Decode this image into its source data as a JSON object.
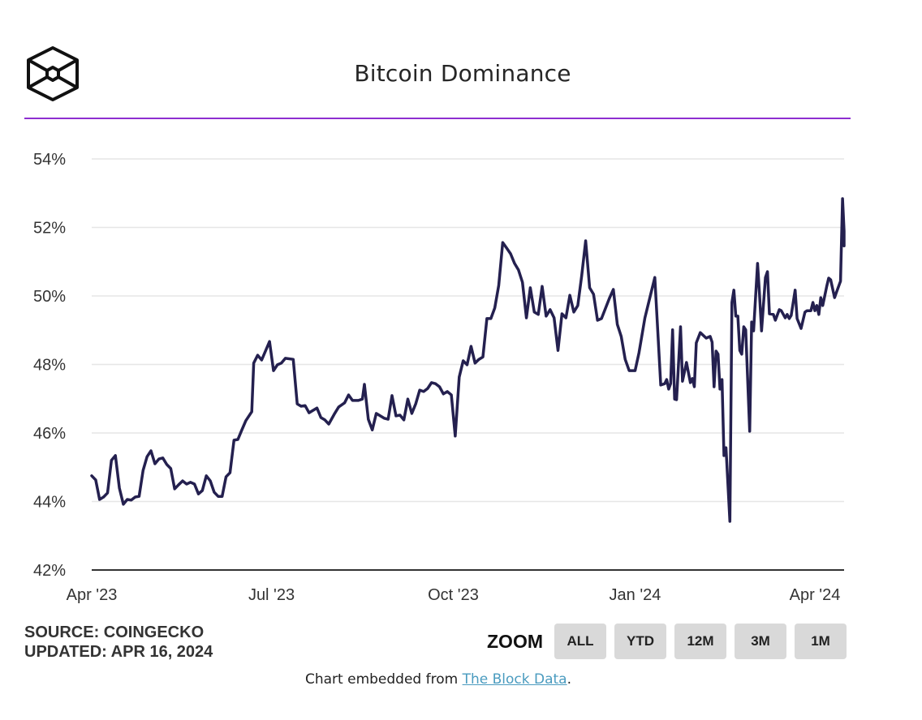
{
  "header": {
    "title": "Bitcoin Dominance",
    "logo_icon": "the-block-cube-logo-icon",
    "accent_color": "#8e2fd0"
  },
  "meta": {
    "source": "SOURCE: COINGECKO",
    "updated": "UPDATED: APR 16, 2024"
  },
  "zoom": {
    "label": "ZOOM",
    "buttons": [
      "ALL",
      "YTD",
      "12M",
      "3M",
      "1M"
    ]
  },
  "footer": {
    "prefix": "Chart embedded from ",
    "link_text": "The Block Data",
    "suffix": ".",
    "link_color": "#4a9bbf"
  },
  "chart_data": {
    "type": "line",
    "title": "Bitcoin Dominance",
    "xlabel": "",
    "ylabel": "",
    "ylim": [
      42,
      54
    ],
    "xlim": [
      "2023-04-01",
      "2024-04-15"
    ],
    "yticks": [
      42,
      44,
      46,
      48,
      50,
      52,
      54
    ],
    "ytick_labels": [
      "42%",
      "44%",
      "46%",
      "48%",
      "50%",
      "52%",
      "54%"
    ],
    "xticks": [
      "2023-04-01",
      "2023-07-01",
      "2023-10-01",
      "2024-01-01",
      "2024-04-01"
    ],
    "xtick_labels": [
      "Apr '23",
      "Jul '23",
      "Oct '23",
      "Jan '24",
      "Apr '24"
    ],
    "grid": "horizontal",
    "legend": "none",
    "line_color": "#24204f",
    "series": [
      {
        "name": "Bitcoin Dominance",
        "points": [
          [
            "2023-04-01",
            44.75
          ],
          [
            "2023-04-03",
            44.63
          ],
          [
            "2023-04-05",
            44.06
          ],
          [
            "2023-04-07",
            44.13
          ],
          [
            "2023-04-09",
            44.25
          ],
          [
            "2023-04-11",
            45.2
          ],
          [
            "2023-04-13",
            45.34
          ],
          [
            "2023-04-15",
            44.39
          ],
          [
            "2023-04-17",
            43.92
          ],
          [
            "2023-04-19",
            44.06
          ],
          [
            "2023-04-21",
            44.04
          ],
          [
            "2023-04-23",
            44.13
          ],
          [
            "2023-04-25",
            44.15
          ],
          [
            "2023-04-27",
            44.91
          ],
          [
            "2023-04-29",
            45.31
          ],
          [
            "2023-05-01",
            45.48
          ],
          [
            "2023-05-03",
            45.1
          ],
          [
            "2023-05-05",
            45.24
          ],
          [
            "2023-05-07",
            45.27
          ],
          [
            "2023-05-09",
            45.08
          ],
          [
            "2023-05-11",
            44.96
          ],
          [
            "2023-05-13",
            44.37
          ],
          [
            "2023-05-15",
            44.49
          ],
          [
            "2023-05-17",
            44.6
          ],
          [
            "2023-05-19",
            44.51
          ],
          [
            "2023-05-21",
            44.56
          ],
          [
            "2023-05-23",
            44.51
          ],
          [
            "2023-05-25",
            44.22
          ],
          [
            "2023-05-27",
            44.32
          ],
          [
            "2023-05-29",
            44.75
          ],
          [
            "2023-05-31",
            44.6
          ],
          [
            "2023-06-02",
            44.27
          ],
          [
            "2023-06-04",
            44.15
          ],
          [
            "2023-06-06",
            44.15
          ],
          [
            "2023-06-08",
            44.72
          ],
          [
            "2023-06-10",
            44.84
          ],
          [
            "2023-06-12",
            45.79
          ],
          [
            "2023-06-14",
            45.81
          ],
          [
            "2023-06-16",
            46.09
          ],
          [
            "2023-06-18",
            46.36
          ],
          [
            "2023-06-21",
            46.62
          ],
          [
            "2023-06-22",
            48.04
          ],
          [
            "2023-06-24",
            48.27
          ],
          [
            "2023-06-26",
            48.13
          ],
          [
            "2023-06-30",
            48.67
          ],
          [
            "2023-07-02",
            47.82
          ],
          [
            "2023-07-04",
            47.99
          ],
          [
            "2023-07-06",
            48.04
          ],
          [
            "2023-07-08",
            48.18
          ],
          [
            "2023-07-12",
            48.15
          ],
          [
            "2023-07-14",
            46.85
          ],
          [
            "2023-07-16",
            46.78
          ],
          [
            "2023-07-18",
            46.8
          ],
          [
            "2023-07-20",
            46.59
          ],
          [
            "2023-07-24",
            46.73
          ],
          [
            "2023-07-26",
            46.45
          ],
          [
            "2023-07-28",
            46.38
          ],
          [
            "2023-07-30",
            46.26
          ],
          [
            "2023-08-02",
            46.57
          ],
          [
            "2023-08-04",
            46.76
          ],
          [
            "2023-08-07",
            46.88
          ],
          [
            "2023-08-09",
            47.11
          ],
          [
            "2023-08-11",
            46.95
          ],
          [
            "2023-08-14",
            46.95
          ],
          [
            "2023-08-16",
            46.99
          ],
          [
            "2023-08-17",
            47.42
          ],
          [
            "2023-08-19",
            46.4
          ],
          [
            "2023-08-21",
            46.09
          ],
          [
            "2023-08-23",
            46.57
          ],
          [
            "2023-08-27",
            46.43
          ],
          [
            "2023-08-29",
            46.4
          ],
          [
            "2023-08-31",
            47.09
          ],
          [
            "2023-09-02",
            46.5
          ],
          [
            "2023-09-04",
            46.52
          ],
          [
            "2023-09-06",
            46.38
          ],
          [
            "2023-09-08",
            46.99
          ],
          [
            "2023-09-10",
            46.57
          ],
          [
            "2023-09-12",
            46.85
          ],
          [
            "2023-09-14",
            47.25
          ],
          [
            "2023-09-16",
            47.21
          ],
          [
            "2023-09-18",
            47.3
          ],
          [
            "2023-09-20",
            47.47
          ],
          [
            "2023-09-22",
            47.44
          ],
          [
            "2023-09-24",
            47.35
          ],
          [
            "2023-09-26",
            47.14
          ],
          [
            "2023-09-28",
            47.21
          ],
          [
            "2023-09-30",
            47.11
          ],
          [
            "2023-10-02",
            45.91
          ],
          [
            "2023-10-04",
            47.63
          ],
          [
            "2023-10-06",
            48.11
          ],
          [
            "2023-10-08",
            47.99
          ],
          [
            "2023-10-10",
            48.53
          ],
          [
            "2023-10-12",
            48.04
          ],
          [
            "2023-10-14",
            48.15
          ],
          [
            "2023-10-16",
            48.22
          ],
          [
            "2023-10-18",
            49.34
          ],
          [
            "2023-10-20",
            49.34
          ],
          [
            "2023-10-22",
            49.65
          ],
          [
            "2023-10-24",
            50.31
          ],
          [
            "2023-10-26",
            51.56
          ],
          [
            "2023-10-28",
            51.4
          ],
          [
            "2023-10-30",
            51.23
          ],
          [
            "2023-11-01",
            50.95
          ],
          [
            "2023-11-03",
            50.76
          ],
          [
            "2023-11-05",
            50.4
          ],
          [
            "2023-11-07",
            49.36
          ],
          [
            "2023-11-09",
            50.24
          ],
          [
            "2023-11-11",
            49.53
          ],
          [
            "2023-11-13",
            49.46
          ],
          [
            "2023-11-15",
            50.28
          ],
          [
            "2023-11-17",
            49.41
          ],
          [
            "2023-11-19",
            49.6
          ],
          [
            "2023-11-21",
            49.36
          ],
          [
            "2023-11-23",
            48.41
          ],
          [
            "2023-11-25",
            49.48
          ],
          [
            "2023-11-27",
            49.36
          ],
          [
            "2023-11-29",
            50.02
          ],
          [
            "2023-12-01",
            49.53
          ],
          [
            "2023-12-03",
            49.72
          ],
          [
            "2023-12-05",
            50.59
          ],
          [
            "2023-12-07",
            51.61
          ],
          [
            "2023-12-09",
            50.24
          ],
          [
            "2023-12-11",
            50.05
          ],
          [
            "2023-12-13",
            49.29
          ],
          [
            "2023-12-15",
            49.34
          ],
          [
            "2023-12-19",
            49.93
          ],
          [
            "2023-12-21",
            50.19
          ],
          [
            "2023-12-23",
            49.17
          ],
          [
            "2023-12-25",
            48.82
          ],
          [
            "2023-12-27",
            48.15
          ],
          [
            "2023-12-29",
            47.82
          ],
          [
            "2024-01-01",
            47.82
          ],
          [
            "2024-01-03",
            48.34
          ],
          [
            "2024-01-06",
            49.36
          ],
          [
            "2024-01-11",
            50.54
          ],
          [
            "2024-01-14",
            47.4
          ],
          [
            "2024-01-16",
            47.44
          ],
          [
            "2024-01-17",
            47.56
          ],
          [
            "2024-01-18",
            47.28
          ],
          [
            "2024-01-19",
            47.44
          ],
          [
            "2024-01-20",
            49.01
          ],
          [
            "2024-01-21",
            46.99
          ],
          [
            "2024-01-22",
            46.97
          ],
          [
            "2024-01-24",
            49.1
          ],
          [
            "2024-01-25",
            47.51
          ],
          [
            "2024-01-27",
            48.06
          ],
          [
            "2024-01-29",
            47.47
          ],
          [
            "2024-01-30",
            47.59
          ],
          [
            "2024-01-31",
            47.35
          ],
          [
            "2024-02-01",
            48.63
          ],
          [
            "2024-02-03",
            48.93
          ],
          [
            "2024-02-06",
            48.77
          ],
          [
            "2024-02-08",
            48.82
          ],
          [
            "2024-02-09",
            48.65
          ],
          [
            "2024-02-10",
            47.35
          ],
          [
            "2024-02-11",
            48.39
          ],
          [
            "2024-02-12",
            48.3
          ],
          [
            "2024-02-13",
            47.28
          ],
          [
            "2024-02-14",
            47.56
          ],
          [
            "2024-02-15",
            45.34
          ],
          [
            "2024-02-16",
            45.57
          ],
          [
            "2024-02-18",
            43.42
          ],
          [
            "2024-02-19",
            49.81
          ],
          [
            "2024-02-20",
            50.17
          ],
          [
            "2024-02-21",
            49.41
          ],
          [
            "2024-02-22",
            49.41
          ],
          [
            "2024-02-23",
            48.41
          ],
          [
            "2024-02-24",
            48.3
          ],
          [
            "2024-02-25",
            49.1
          ],
          [
            "2024-02-26",
            49.01
          ],
          [
            "2024-02-28",
            46.05
          ],
          [
            "2024-02-29",
            49.24
          ],
          [
            "2024-03-01",
            48.98
          ],
          [
            "2024-03-03",
            50.95
          ],
          [
            "2024-03-04",
            50.05
          ],
          [
            "2024-03-05",
            48.98
          ],
          [
            "2024-03-07",
            50.54
          ],
          [
            "2024-03-08",
            50.71
          ],
          [
            "2024-03-09",
            49.48
          ],
          [
            "2024-03-11",
            49.46
          ],
          [
            "2024-03-12",
            49.29
          ],
          [
            "2024-03-14",
            49.6
          ],
          [
            "2024-03-15",
            49.57
          ],
          [
            "2024-03-17",
            49.36
          ],
          [
            "2024-03-18",
            49.46
          ],
          [
            "2024-03-19",
            49.34
          ],
          [
            "2024-03-20",
            49.43
          ],
          [
            "2024-03-22",
            50.17
          ],
          [
            "2024-03-23",
            49.34
          ],
          [
            "2024-03-25",
            49.05
          ],
          [
            "2024-03-27",
            49.53
          ],
          [
            "2024-03-28",
            49.57
          ],
          [
            "2024-03-30",
            49.57
          ],
          [
            "2024-03-31",
            49.81
          ],
          [
            "2024-04-01",
            49.57
          ],
          [
            "2024-04-02",
            49.72
          ],
          [
            "2024-04-03",
            49.46
          ],
          [
            "2024-04-04",
            49.95
          ],
          [
            "2024-04-05",
            49.72
          ],
          [
            "2024-04-07",
            50.28
          ],
          [
            "2024-04-08",
            50.52
          ],
          [
            "2024-04-09",
            50.47
          ],
          [
            "2024-04-11",
            49.95
          ],
          [
            "2024-04-12",
            50.12
          ],
          [
            "2024-04-14",
            50.43
          ],
          [
            "2024-04-15",
            52.84
          ],
          [
            "2024-04-16",
            51.89
          ],
          [
            "2024-04-16",
            51.46
          ]
        ]
      }
    ]
  }
}
